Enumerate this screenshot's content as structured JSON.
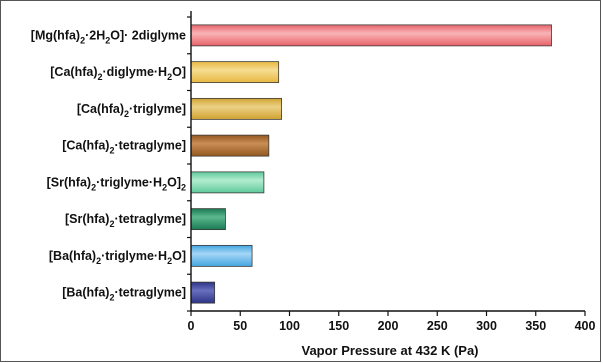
{
  "chart_data": {
    "type": "bar",
    "orientation": "horizontal",
    "categories": [
      {
        "id": "mg_2h2o_2diglyme",
        "parts": [
          [
            "[Mg(hfa)",
            ""
          ],
          [
            "2",
            "sub"
          ],
          [
            "·2H",
            ""
          ],
          [
            "2",
            "sub"
          ],
          [
            "O]· 2diglyme",
            ""
          ]
        ]
      },
      {
        "id": "ca_diglyme_h2o",
        "parts": [
          [
            "[Ca(hfa)",
            ""
          ],
          [
            "2",
            "sub"
          ],
          [
            "·diglyme·H",
            ""
          ],
          [
            "2",
            "sub"
          ],
          [
            "O]",
            ""
          ]
        ]
      },
      {
        "id": "ca_triglyme",
        "parts": [
          [
            "[Ca(hfa)",
            ""
          ],
          [
            "2",
            "sub"
          ],
          [
            "·triglyme]",
            ""
          ]
        ]
      },
      {
        "id": "ca_tetraglyme",
        "parts": [
          [
            "[Ca(hfa)",
            ""
          ],
          [
            "2",
            "sub"
          ],
          [
            "·tetraglyme]",
            ""
          ]
        ]
      },
      {
        "id": "sr_triglyme_h2o",
        "parts": [
          [
            "[Sr(hfa)",
            ""
          ],
          [
            "2",
            "sub"
          ],
          [
            "·triglyme·H",
            ""
          ],
          [
            "2",
            "sub"
          ],
          [
            "O]",
            ""
          ],
          [
            "2",
            "sub"
          ]
        ]
      },
      {
        "id": "sr_tetraglyme",
        "parts": [
          [
            "[Sr(hfa)",
            ""
          ],
          [
            "2",
            "sub"
          ],
          [
            "·tetraglyme]",
            ""
          ]
        ]
      },
      {
        "id": "ba_triglyme_h2o",
        "parts": [
          [
            "[Ba(hfa)",
            ""
          ],
          [
            "2",
            "sub"
          ],
          [
            "·triglyme·H",
            ""
          ],
          [
            "2",
            "sub"
          ],
          [
            "O]",
            ""
          ]
        ]
      },
      {
        "id": "ba_tetraglyme",
        "parts": [
          [
            "[Ba(hfa)",
            ""
          ],
          [
            "2",
            "sub"
          ],
          [
            "·tetraglyme]",
            ""
          ]
        ]
      }
    ],
    "values": [
      366,
      89,
      92,
      79,
      74,
      35,
      62,
      24
    ],
    "colors": [
      "#e8636a",
      "#e8b840",
      "#cfa231",
      "#93581f",
      "#5ec99a",
      "#1a7a52",
      "#44a6e0",
      "#2e3485"
    ],
    "highlight_colors": [
      "#f9b3b6",
      "#f6dd92",
      "#ecd286",
      "#c98e56",
      "#b3ecd0",
      "#5cb98f",
      "#a4d6f6",
      "#6a70c0"
    ],
    "xlabel": "Vapor Pressure  at 432 K (Pa)",
    "ylabel": "",
    "title": "",
    "xlim": [
      0,
      400
    ],
    "xticks": [
      0,
      50,
      100,
      150,
      200,
      250,
      300,
      350,
      400
    ],
    "grid": false,
    "legend": "none"
  }
}
